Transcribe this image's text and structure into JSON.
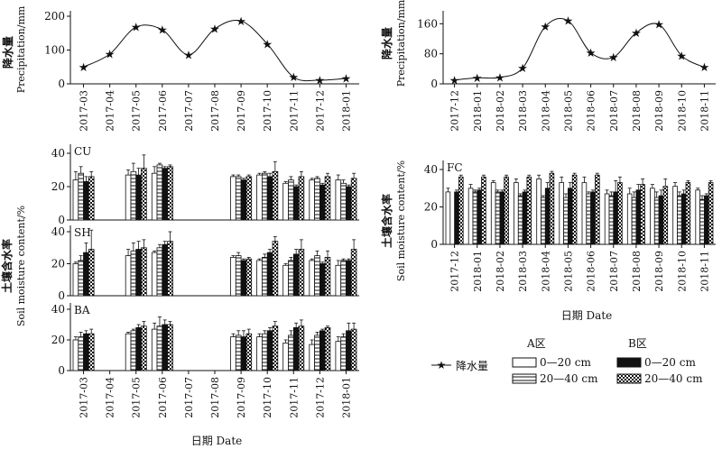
{
  "colors": {
    "ink": "#111111",
    "background": "#ffffff"
  },
  "chart_data": [
    {
      "id": "precip_left",
      "type": "line",
      "ylabel_cn": "降水量",
      "ylabel_en": "Precipitation/mm",
      "ylim": [
        0,
        200
      ],
      "yticks": [
        0,
        100,
        200
      ],
      "categories": [
        "2017-03",
        "2017-04",
        "2017-05",
        "2017-06",
        "2017-07",
        "2017-08",
        "2017-09",
        "2017-10",
        "2017-11",
        "2017-12",
        "2018-01"
      ],
      "series": [
        {
          "name": "降水量",
          "values": [
            50,
            88,
            168,
            160,
            86,
            163,
            186,
            118,
            20,
            11,
            16
          ]
        }
      ]
    },
    {
      "id": "precip_right",
      "type": "line",
      "ylabel_cn": "降水量",
      "ylabel_en": "Precipitation/mm",
      "ylim": [
        0,
        180
      ],
      "yticks": [
        0,
        80,
        160
      ],
      "categories": [
        "2017-12",
        "2018-01",
        "2018-02",
        "2018-03",
        "2018-04",
        "2018-05",
        "2018-06",
        "2018-07",
        "2018-08",
        "2018-09",
        "2018-10",
        "2018-11"
      ],
      "series": [
        {
          "name": "降水量",
          "values": [
            10,
            16,
            17,
            42,
            153,
            168,
            83,
            71,
            136,
            158,
            75,
            44
          ]
        }
      ]
    },
    {
      "id": "soil_left",
      "type": "bar",
      "xlabel": "日期 Date",
      "ylabel_cn": "土壤含水率",
      "ylabel_en": "Soil moisture content/%",
      "ylim": [
        0,
        40
      ],
      "yticks": [
        0,
        20,
        40
      ],
      "categories": [
        "2017-03",
        "2017-04",
        "2017-05",
        "2017-06",
        "2017-07",
        "2017-08",
        "2017-09",
        "2017-10",
        "2017-11",
        "2017-12",
        "2018-01"
      ],
      "series_names": [
        "A区 0—20 cm",
        "A区 20—40 cm",
        "B区 0—20 cm",
        "B区 20—40 cm"
      ],
      "panels": [
        {
          "label": "CU",
          "months": [
            {
              "m": "2017-03",
              "v": [
                24,
                28,
                23,
                26
              ],
              "e": [
                5,
                4,
                3,
                3
              ]
            },
            {
              "m": "2017-05",
              "v": [
                27,
                29,
                27,
                31
              ],
              "e": [
                3,
                5,
                4,
                8
              ]
            },
            {
              "m": "2017-06",
              "v": [
                28,
                33,
                31,
                32
              ],
              "e": [
                4,
                1,
                1,
                1
              ]
            },
            {
              "m": "2017-09",
              "v": [
                26,
                26,
                24,
                26
              ],
              "e": [
                1,
                1,
                1,
                1
              ]
            },
            {
              "m": "2017-10",
              "v": [
                27,
                28,
                26,
                29
              ],
              "e": [
                1,
                1,
                2,
                6
              ]
            },
            {
              "m": "2017-11",
              "v": [
                22,
                24,
                20,
                26
              ],
              "e": [
                1,
                2,
                1,
                3
              ]
            },
            {
              "m": "2017-12",
              "v": [
                24,
                25,
                21,
                26
              ],
              "e": [
                1,
                1,
                1,
                2
              ]
            },
            {
              "m": "2018-01",
              "v": [
                24,
                22,
                20,
                25
              ],
              "e": [
                3,
                2,
                1,
                3
              ]
            }
          ]
        },
        {
          "label": "SH",
          "months": [
            {
              "m": "2017-03",
              "v": [
                20,
                22,
                27,
                29
              ],
              "e": [
                1,
                3,
                6,
                12
              ]
            },
            {
              "m": "2017-05",
              "v": [
                25,
                28,
                29,
                30
              ],
              "e": [
                4,
                5,
                5,
                5
              ]
            },
            {
              "m": "2017-06",
              "v": [
                27,
                30,
                32,
                34
              ],
              "e": [
                1,
                2,
                2,
                6
              ]
            },
            {
              "m": "2017-09",
              "v": [
                24,
                25,
                22,
                23
              ],
              "e": [
                1,
                2,
                1,
                1
              ]
            },
            {
              "m": "2017-10",
              "v": [
                22,
                24,
                27,
                34
              ],
              "e": [
                1,
                2,
                2,
                3
              ]
            },
            {
              "m": "2017-11",
              "v": [
                19,
                22,
                26,
                29
              ],
              "e": [
                1,
                2,
                3,
                6
              ]
            },
            {
              "m": "2017-12",
              "v": [
                22,
                25,
                20,
                24
              ],
              "e": [
                1,
                3,
                1,
                4
              ]
            },
            {
              "m": "2018-01",
              "v": [
                19,
                22,
                22,
                29
              ],
              "e": [
                3,
                1,
                1,
                6
              ]
            }
          ]
        },
        {
          "label": "BA",
          "months": [
            {
              "m": "2017-03",
              "v": [
                20,
                22,
                24,
                24
              ],
              "e": [
                2,
                3,
                2,
                3
              ]
            },
            {
              "m": "2017-05",
              "v": [
                24,
                26,
                28,
                29
              ],
              "e": [
                1,
                1,
                2,
                3
              ]
            },
            {
              "m": "2017-06",
              "v": [
                27,
                29,
                30,
                30
              ],
              "e": [
                4,
                6,
                3,
                2
              ]
            },
            {
              "m": "2017-09",
              "v": [
                22,
                23,
                22,
                24
              ],
              "e": [
                2,
                3,
                4,
                3
              ]
            },
            {
              "m": "2017-10",
              "v": [
                22,
                24,
                26,
                29
              ],
              "e": [
                2,
                2,
                2,
                3
              ]
            },
            {
              "m": "2017-11",
              "v": [
                18,
                23,
                28,
                29
              ],
              "e": [
                2,
                3,
                3,
                4
              ]
            },
            {
              "m": "2017-12",
              "v": [
                17,
                23,
                26,
                28
              ],
              "e": [
                3,
                2,
                1,
                1
              ]
            },
            {
              "m": "2018-01",
              "v": [
                19,
                22,
                26,
                27
              ],
              "e": [
                3,
                2,
                5,
                4
              ]
            }
          ]
        }
      ]
    },
    {
      "id": "soil_right",
      "type": "bar",
      "xlabel": "日期 Date",
      "ylabel_cn": "土壤含水率",
      "ylabel_en": "Soil moisture content/%",
      "ylim": [
        0,
        40
      ],
      "yticks": [
        0,
        20,
        40
      ],
      "categories": [
        "2017-12",
        "2018-01",
        "2018-02",
        "2018-03",
        "2018-04",
        "2018-05",
        "2018-06",
        "2018-07",
        "2018-08",
        "2018-09",
        "2018-10",
        "2018-11"
      ],
      "series_names": [
        "A区 0—20 cm",
        "A区 20—40 cm",
        "B区 0—20 cm",
        "B区 20—40 cm"
      ],
      "panels": [
        {
          "label": "FC",
          "months": [
            {
              "m": "2017-12",
              "v": [
                28,
                0,
                28,
                36
              ],
              "e": [
                2,
                0,
                1,
                1
              ]
            },
            {
              "m": "2018-01",
              "v": [
                30,
                28,
                29,
                36
              ],
              "e": [
                2,
                1,
                1,
                1
              ]
            },
            {
              "m": "2018-02",
              "v": [
                33,
                28,
                28,
                36
              ],
              "e": [
                1,
                1,
                1,
                1
              ]
            },
            {
              "m": "2018-03",
              "v": [
                33,
                26,
                28,
                36
              ],
              "e": [
                2,
                1,
                1,
                1
              ]
            },
            {
              "m": "2018-04",
              "v": [
                35,
                25,
                30,
                38
              ],
              "e": [
                2,
                1,
                3,
                1
              ]
            },
            {
              "m": "2018-05",
              "v": [
                33,
                25,
                30,
                37
              ],
              "e": [
                3,
                2,
                3,
                1
              ]
            },
            {
              "m": "2018-06",
              "v": [
                33,
                27,
                28,
                37
              ],
              "e": [
                3,
                1,
                1,
                1
              ]
            },
            {
              "m": "2018-07",
              "v": [
                27,
                26,
                28,
                33
              ],
              "e": [
                2,
                2,
                6,
                3
              ]
            },
            {
              "m": "2018-08",
              "v": [
                27,
                25,
                29,
                32
              ],
              "e": [
                3,
                3,
                3,
                3
              ]
            },
            {
              "m": "2018-09",
              "v": [
                30,
                25,
                26,
                31
              ],
              "e": [
                2,
                3,
                3,
                4
              ]
            },
            {
              "m": "2018-10",
              "v": [
                31,
                26,
                27,
                33
              ],
              "e": [
                2,
                2,
                2,
                1
              ]
            },
            {
              "m": "2018-11",
              "v": [
                29,
                24,
                26,
                33
              ],
              "e": [
                1,
                2,
                1,
                1
              ]
            }
          ]
        }
      ]
    }
  ],
  "legend": {
    "precip_label": "降水量",
    "zone_a": "A区",
    "zone_b": "B区",
    "depth_0_20": "0—20 cm",
    "depth_20_40": "20—40 cm"
  }
}
